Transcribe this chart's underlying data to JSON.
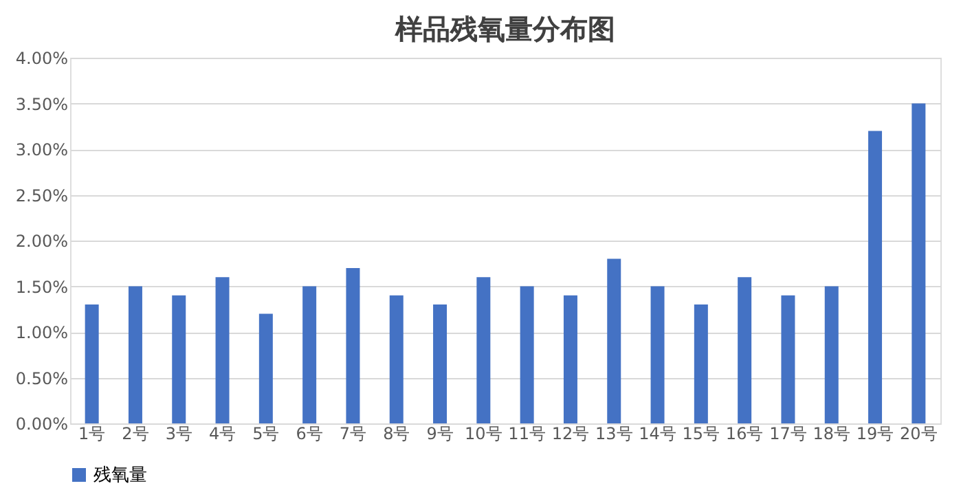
{
  "chart_data": {
    "type": "bar",
    "title": "样品残氧量分布图",
    "categories": [
      "1号",
      "2号",
      "3号",
      "4号",
      "5号",
      "6号",
      "7号",
      "8号",
      "9号",
      "10号",
      "11号",
      "12号",
      "13号",
      "14号",
      "15号",
      "16号",
      "17号",
      "18号",
      "19号",
      "20号"
    ],
    "series": [
      {
        "name": "残氧量",
        "color": "#4472c4",
        "values": [
          1.3,
          1.5,
          1.4,
          1.6,
          1.2,
          1.5,
          1.7,
          1.4,
          1.3,
          1.6,
          1.5,
          1.4,
          1.8,
          1.5,
          1.3,
          1.6,
          1.4,
          1.5,
          3.2,
          3.5
        ]
      }
    ],
    "ylim": [
      0,
      4
    ],
    "yticks": [
      {
        "value": 0,
        "label": "0.00%"
      },
      {
        "value": 0.5,
        "label": "0.50%"
      },
      {
        "value": 1,
        "label": "1.00%"
      },
      {
        "value": 1.5,
        "label": "1.50%"
      },
      {
        "value": 2,
        "label": "2.00%"
      },
      {
        "value": 2.5,
        "label": "2.50%"
      },
      {
        "value": 3,
        "label": "3.00%"
      },
      {
        "value": 3.5,
        "label": "3.50%"
      },
      {
        "value": 4,
        "label": "4.00%"
      }
    ],
    "grid": "y",
    "legend": "bottom"
  }
}
